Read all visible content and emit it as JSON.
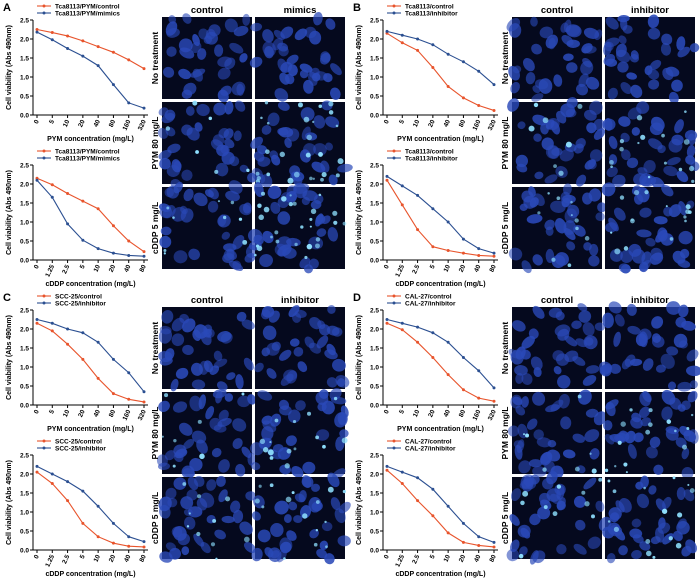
{
  "panels": [
    {
      "letter": "A",
      "header_left": "control",
      "header_right": "mimics",
      "row_labels": [
        "No treatment",
        "PYM 80 mg/L",
        "cDDP 5 mg/L"
      ]
    },
    {
      "letter": "B",
      "header_left": "control",
      "header_right": "inhibitor",
      "row_labels": [
        "No treatment",
        "PYM 80 mg/L",
        "cDDP 5 mg/L"
      ]
    },
    {
      "letter": "C",
      "header_left": "control",
      "header_right": "inhibitor",
      "row_labels": [
        "No treatment",
        "PYM 80 mg/L",
        "cDDP 5 mg/L"
      ]
    },
    {
      "letter": "D",
      "header_left": "control",
      "header_right": "inhibitor",
      "row_labels": [
        "No treatment",
        "PYM 80 mg/L",
        "cDDP 5 mg/L"
      ]
    }
  ],
  "colors": {
    "control": "#e8542c",
    "treated": "#2b4f91",
    "micrograph_bg": "#05091e",
    "nucleus": "#2a49b8",
    "bright_nucleus": "#8fe0ff"
  },
  "chart_data": [
    {
      "type": "line",
      "panel": "A",
      "position": "top",
      "categories": [
        "0",
        "5",
        "10",
        "20",
        "40",
        "80",
        "160",
        "320"
      ],
      "xlabel": "PYM concentration (mg/L)",
      "ylabel": "Cell viability (Abs 490nm)",
      "ylim": [
        0,
        2.5
      ],
      "yticks": [
        "0.0",
        "0.5",
        "1.0",
        "1.5",
        "2.0",
        "2.5"
      ],
      "legend_position": "top-left",
      "series": [
        {
          "name": "Tca8113/PYM/control",
          "values": [
            2.25,
            2.17,
            2.08,
            1.95,
            1.8,
            1.65,
            1.45,
            1.22
          ]
        },
        {
          "name": "Tca8113/PYM/mimics",
          "values": [
            2.18,
            1.98,
            1.75,
            1.55,
            1.3,
            0.8,
            0.32,
            0.18
          ]
        }
      ]
    },
    {
      "type": "line",
      "panel": "A",
      "position": "bottom",
      "categories": [
        "0",
        "1.25",
        "2.5",
        "5",
        "10",
        "20",
        "40",
        "80"
      ],
      "xlabel": "cDDP concentration (mg/L)",
      "ylabel": "Cell viability (Abs 490nm)",
      "ylim": [
        0,
        2.5
      ],
      "yticks": [
        "0.0",
        "0.5",
        "1.0",
        "1.5",
        "2.0",
        "2.5"
      ],
      "legend_position": "top-left",
      "series": [
        {
          "name": "Tca8113/PYM/control",
          "values": [
            2.15,
            1.98,
            1.75,
            1.55,
            1.35,
            0.9,
            0.5,
            0.22
          ]
        },
        {
          "name": "Tca8113/PYM/mimics",
          "values": [
            2.1,
            1.65,
            0.95,
            0.52,
            0.3,
            0.18,
            0.12,
            0.1
          ]
        }
      ]
    },
    {
      "type": "line",
      "panel": "B",
      "position": "top",
      "categories": [
        "0",
        "5",
        "10",
        "20",
        "40",
        "80",
        "160",
        "320"
      ],
      "xlabel": "PYM concentration (mg/L)",
      "ylabel": "Cell viability (Abs 490nm)",
      "ylim": [
        0,
        2.5
      ],
      "yticks": [
        "0.0",
        "0.5",
        "1.0",
        "1.5",
        "2.0",
        "2.5"
      ],
      "legend_position": "top-left",
      "series": [
        {
          "name": "Tca8113/control",
          "values": [
            2.15,
            1.9,
            1.7,
            1.25,
            0.75,
            0.45,
            0.25,
            0.12
          ]
        },
        {
          "name": "Tca8113/inhibitor",
          "values": [
            2.2,
            2.1,
            2.0,
            1.85,
            1.6,
            1.4,
            1.15,
            0.8
          ]
        }
      ]
    },
    {
      "type": "line",
      "panel": "B",
      "position": "bottom",
      "categories": [
        "0",
        "1.25",
        "2.5",
        "5",
        "10",
        "20",
        "40",
        "80"
      ],
      "xlabel": "cDDP concentration (mg/L)",
      "ylabel": "Cell viability (Abs 490nm)",
      "ylim": [
        0,
        2.5
      ],
      "yticks": [
        "0.0",
        "0.5",
        "1.0",
        "1.5",
        "2.0",
        "2.5"
      ],
      "legend_position": "top-left",
      "series": [
        {
          "name": "Tca8113/control",
          "values": [
            2.1,
            1.45,
            0.8,
            0.35,
            0.25,
            0.18,
            0.12,
            0.1
          ]
        },
        {
          "name": "Tca8113/inhibitor",
          "values": [
            2.2,
            1.95,
            1.7,
            1.35,
            1.0,
            0.55,
            0.3,
            0.18
          ]
        }
      ]
    },
    {
      "type": "line",
      "panel": "C",
      "position": "top",
      "categories": [
        "0",
        "5",
        "10",
        "20",
        "40",
        "80",
        "160",
        "320"
      ],
      "xlabel": "PYM concentration (mg/L)",
      "ylabel": "Cell viability (Abs 490nm)",
      "ylim": [
        0,
        2.5
      ],
      "yticks": [
        "0.0",
        "0.5",
        "1.0",
        "1.5",
        "2.0",
        "2.5"
      ],
      "legend_position": "top-left",
      "series": [
        {
          "name": "SCC-25/control",
          "values": [
            2.15,
            1.95,
            1.6,
            1.2,
            0.7,
            0.3,
            0.15,
            0.08
          ]
        },
        {
          "name": "SCC-25/inhibitor",
          "values": [
            2.25,
            2.15,
            2.0,
            1.9,
            1.65,
            1.2,
            0.85,
            0.35
          ]
        }
      ]
    },
    {
      "type": "line",
      "panel": "C",
      "position": "bottom",
      "categories": [
        "0",
        "1.25",
        "2.5",
        "5",
        "10",
        "20",
        "40",
        "80"
      ],
      "xlabel": "cDDP concentration (mg/L)",
      "ylabel": "Cell viability (Abs 490nm)",
      "ylim": [
        0,
        2.5
      ],
      "yticks": [
        "0.0",
        "0.5",
        "1.0",
        "1.5",
        "2.0",
        "2.5"
      ],
      "legend_position": "top-left",
      "series": [
        {
          "name": "SCC-25/control",
          "values": [
            2.05,
            1.75,
            1.3,
            0.7,
            0.35,
            0.18,
            0.1,
            0.08
          ]
        },
        {
          "name": "SCC-25/inhibitor",
          "values": [
            2.2,
            2.0,
            1.8,
            1.55,
            1.15,
            0.7,
            0.35,
            0.22
          ]
        }
      ]
    },
    {
      "type": "line",
      "panel": "D",
      "position": "top",
      "categories": [
        "0",
        "5",
        "10",
        "20",
        "40",
        "80",
        "160",
        "320"
      ],
      "xlabel": "PYM concentration (mg/L)",
      "ylabel": "Cell viability (Abs 490nm)",
      "ylim": [
        0,
        2.5
      ],
      "yticks": [
        "0.0",
        "0.5",
        "1.0",
        "1.5",
        "2.0",
        "2.5"
      ],
      "legend_position": "top-left",
      "series": [
        {
          "name": "CAL-27/control",
          "values": [
            2.15,
            1.98,
            1.65,
            1.25,
            0.8,
            0.4,
            0.18,
            0.1
          ]
        },
        {
          "name": "CAL-27/inhibitor",
          "values": [
            2.25,
            2.15,
            2.05,
            1.9,
            1.65,
            1.25,
            0.9,
            0.45
          ]
        }
      ]
    },
    {
      "type": "line",
      "panel": "D",
      "position": "bottom",
      "categories": [
        "0",
        "1.25",
        "2.5",
        "5",
        "10",
        "20",
        "40",
        "80"
      ],
      "xlabel": "cDDP concentration (mg/L)",
      "ylabel": "Cell viability (Abs 490nm)",
      "ylim": [
        0,
        2.5
      ],
      "yticks": [
        "0.0",
        "0.5",
        "1.0",
        "1.5",
        "2.0",
        "2.5"
      ],
      "legend_position": "top-left",
      "series": [
        {
          "name": "CAL-27/control",
          "values": [
            2.1,
            1.75,
            1.3,
            0.9,
            0.45,
            0.2,
            0.12,
            0.08
          ]
        },
        {
          "name": "CAL-27/inhibitor",
          "values": [
            2.2,
            2.05,
            1.9,
            1.6,
            1.15,
            0.7,
            0.35,
            0.2
          ]
        }
      ]
    }
  ]
}
